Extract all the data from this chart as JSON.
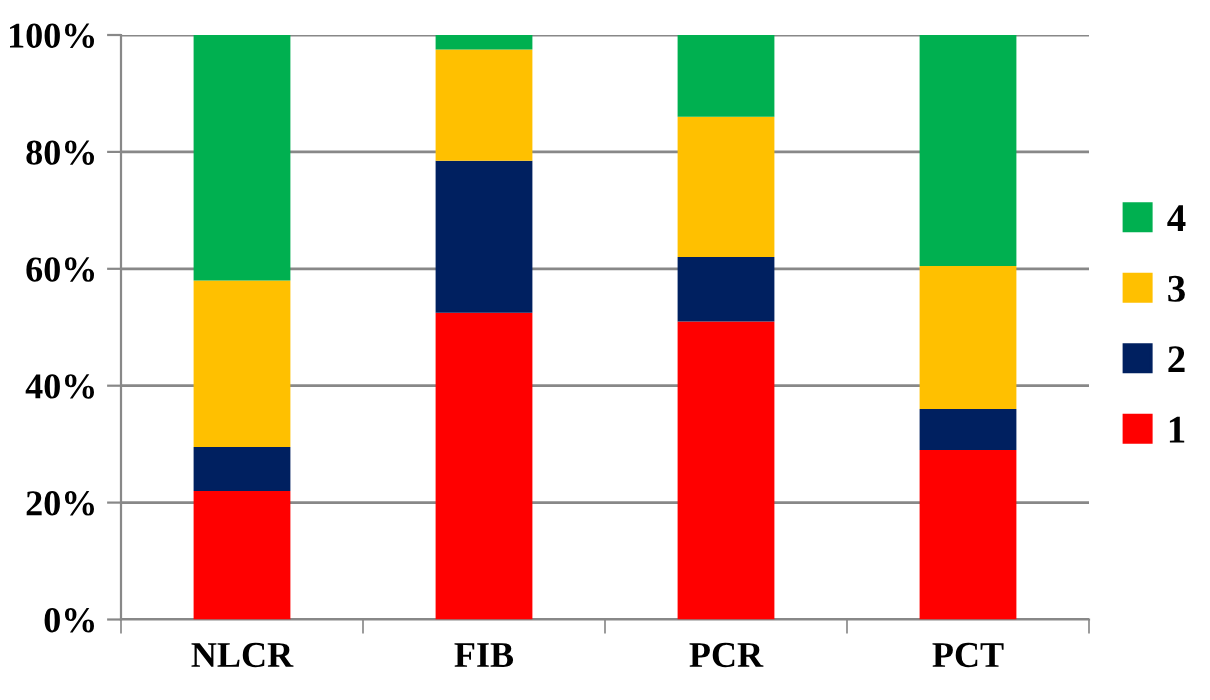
{
  "chart_data": {
    "type": "bar",
    "stacked": true,
    "categories": [
      "NLCR",
      "FIB",
      "PCR",
      "PCT"
    ],
    "series": [
      {
        "name": "1",
        "color": "#ff0000",
        "values": [
          22,
          52.5,
          51,
          29
        ]
      },
      {
        "name": "2",
        "color": "#002060",
        "values": [
          7.5,
          26,
          11,
          7
        ]
      },
      {
        "name": "3",
        "color": "#ffc000",
        "values": [
          28.5,
          19,
          24,
          24.5
        ]
      },
      {
        "name": "4",
        "color": "#00b050",
        "values": [
          42,
          2.5,
          14,
          39.5
        ]
      }
    ],
    "ylim": [
      0,
      100
    ],
    "yticks": [
      {
        "value": 0,
        "label": "0%"
      },
      {
        "value": 20,
        "label": "20%"
      },
      {
        "value": 40,
        "label": "40%"
      },
      {
        "value": 60,
        "label": "60%"
      },
      {
        "value": 80,
        "label": "80%"
      },
      {
        "value": 100,
        "label": "100%"
      }
    ],
    "grid": "y",
    "legend": "right"
  }
}
